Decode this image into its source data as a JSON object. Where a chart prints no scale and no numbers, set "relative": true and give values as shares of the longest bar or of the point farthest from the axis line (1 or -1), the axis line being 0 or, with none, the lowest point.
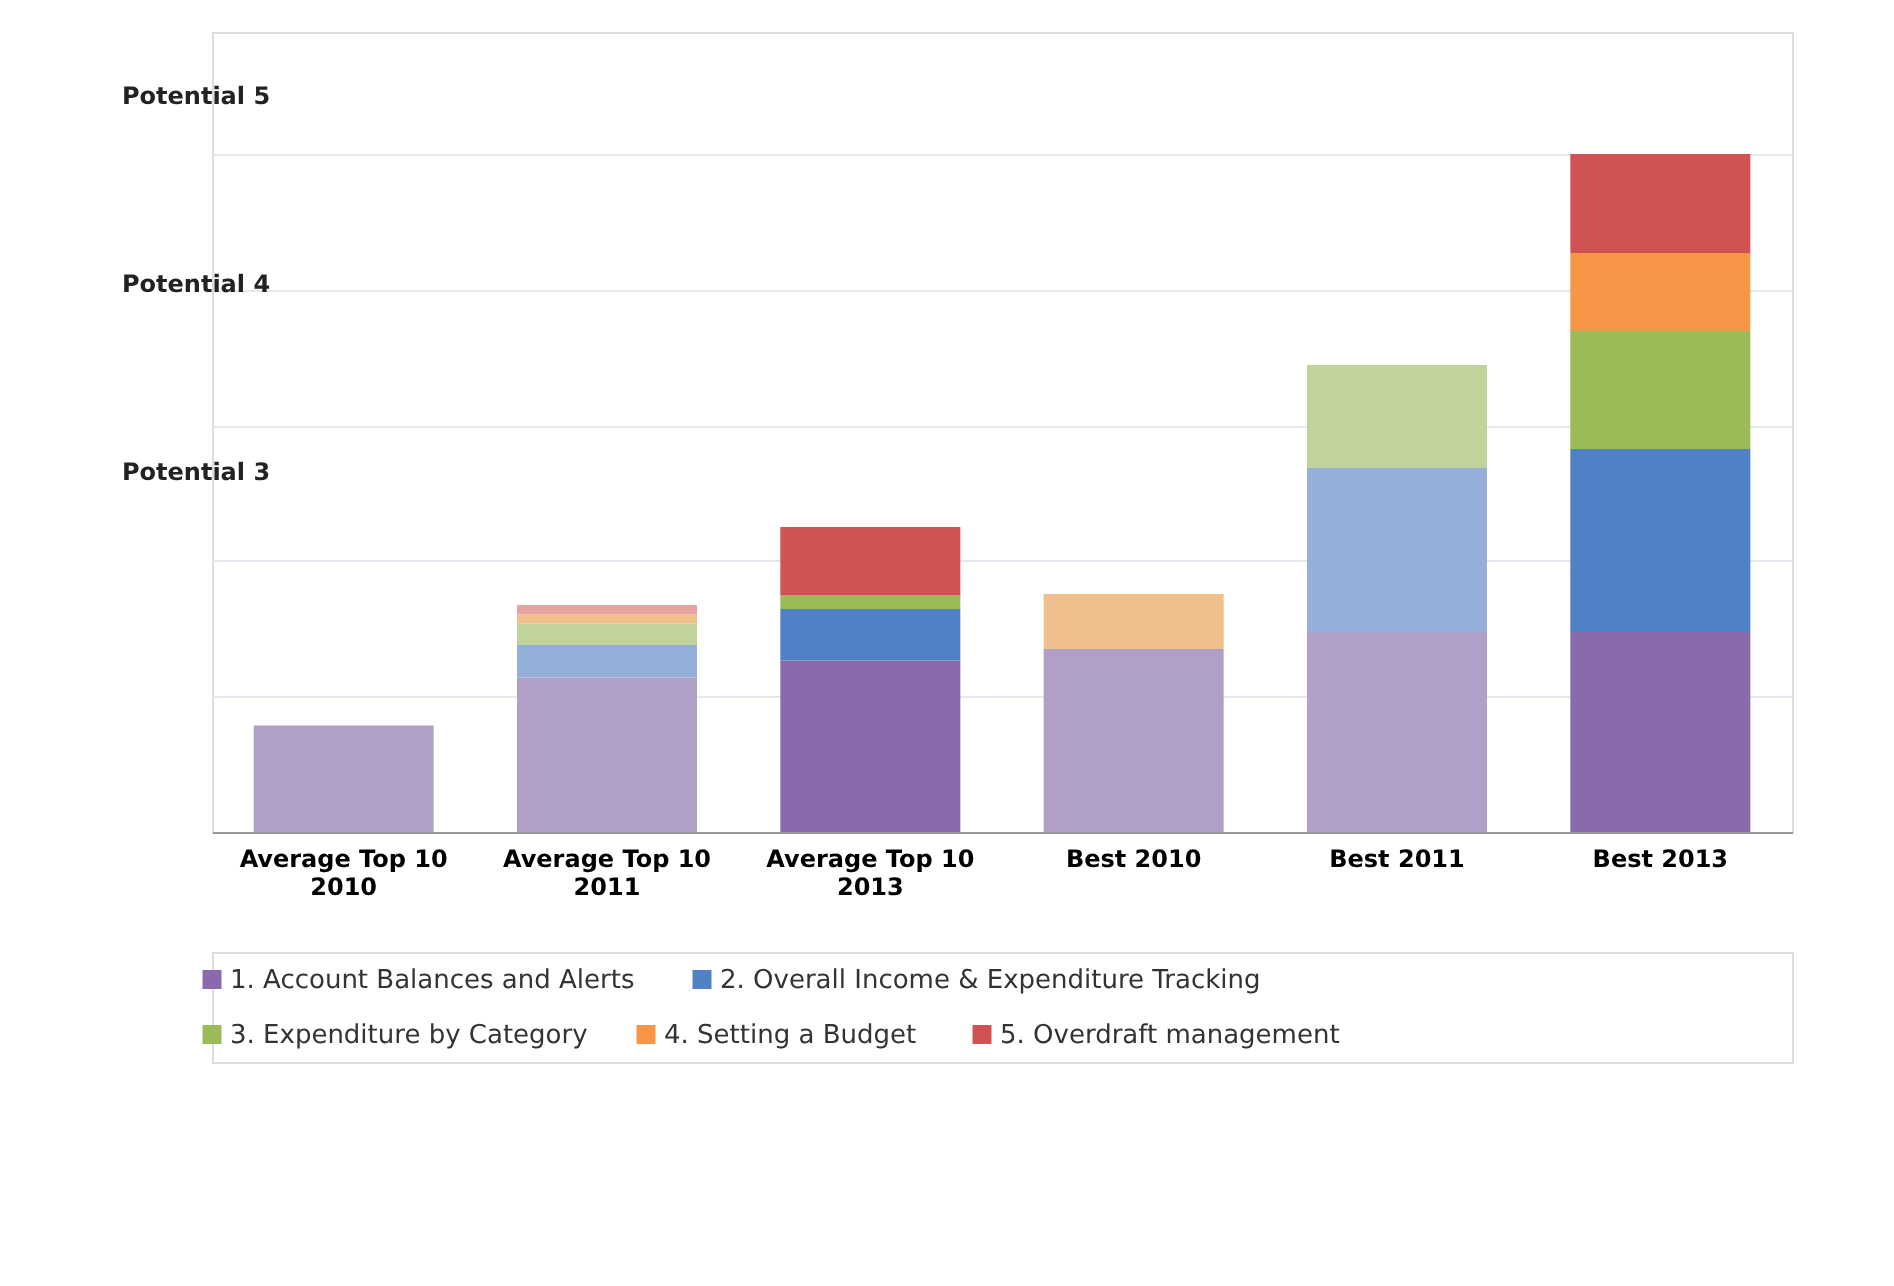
{
  "chart_data": {
    "type": "bar",
    "stacked": true,
    "relative": true,
    "grid": "y",
    "legend": "bottom left",
    "categories": [
      "Average Top 10 2010",
      "Average Top 10 2011",
      "Average Top 10 2013",
      "Best 2010",
      "Best 2011",
      "Best 2013"
    ],
    "series": [
      {
        "name": "1. Account Balances and Alerts",
        "color": "#8a6aad",
        "colors": [
          "#b0a0c8",
          "#b0a0c8",
          "#8a6aad",
          "#b0a0c8",
          "#b0a0c8",
          "#8a6aad"
        ],
        "values": [
          0.157,
          0.228,
          0.253,
          0.27,
          0.295,
          0.295
        ]
      },
      {
        "name": "2. Overall Income & Expenditure Tracking",
        "color": "#4f81c4",
        "colors": [
          "#94afd8",
          "#94afd8",
          "#4f81c4",
          "#94afd8",
          "#94afd8",
          "#4f81c4"
        ],
        "values": [
          null,
          0.048,
          0.076,
          null,
          0.242,
          0.27
        ]
      },
      {
        "name": "3. Expenditure by Category",
        "color": "#9bbb59",
        "colors": [
          "#bfd39b",
          "#bfd39b",
          "#9bbb59",
          "#bfd39b",
          "#bfd39b",
          "#9bbb59"
        ],
        "values": [
          null,
          0.031,
          0.02,
          null,
          0.152,
          0.174
        ]
      },
      {
        "name": "4. Setting a Budget",
        "color": "#f79646",
        "colors": [
          "#f0c08c",
          "#f0c08c",
          "#f79646",
          "#f0c08c",
          "#f0c08c",
          "#f79646"
        ],
        "values": [
          null,
          0.014,
          null,
          0.081,
          null,
          0.115
        ]
      },
      {
        "name": "5. Overdraft management",
        "color": "#cf5353",
        "colors": [
          "#e9a3a0",
          "#e9a3a0",
          "#cf5353",
          "#e9a3a0",
          "#e9a3a0",
          "#cf5353"
        ],
        "values": [
          null,
          0.014,
          0.101,
          null,
          null,
          0.146
        ]
      }
    ],
    "annotations": [
      "Potential 3",
      "Potential 4",
      "Potential 5"
    ]
  }
}
